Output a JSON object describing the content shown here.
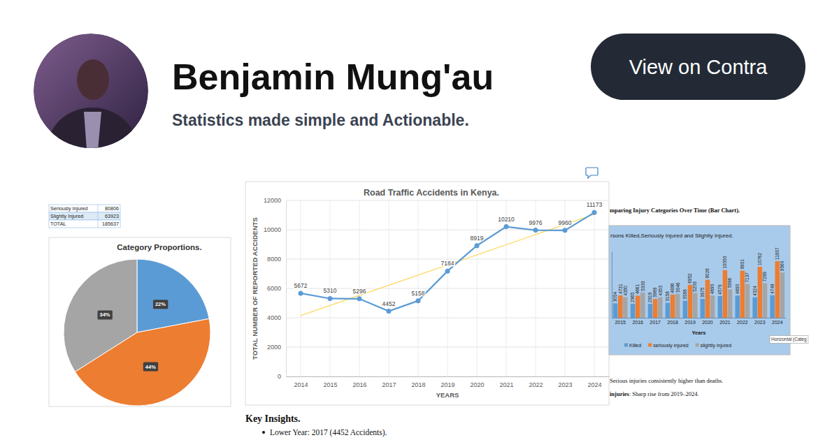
{
  "header": {
    "name": "Benjamin Mung'au",
    "tagline": "Statistics made simple and Actionable.",
    "button": "View on Contra"
  },
  "table": {
    "rows": [
      [
        "Seriously Injured",
        80806
      ],
      [
        "Slightly Injured",
        63923
      ],
      [
        "TOTAL",
        185637
      ]
    ]
  },
  "chart_data": [
    {
      "type": "pie",
      "title": "Category Proportions.",
      "categories": [
        null,
        null,
        null
      ],
      "values": [
        22,
        44,
        34
      ],
      "value_labels": [
        "22%",
        "44%",
        "34%"
      ],
      "colors": [
        "#5b9bd5",
        "#ed7d31",
        "#a5a5a5"
      ],
      "data_labels": true
    },
    {
      "type": "line",
      "title": "Road Traffic Accidents in Kenya.",
      "x_label": "YEARS",
      "y_label": "TOTAL NUMBER OF REPORTED ACCIDENTS",
      "series": [
        {
          "x": [
            2014,
            2015,
            2016,
            2017,
            2018,
            2019,
            2020,
            2021,
            2022,
            2023,
            2024
          ],
          "values": [
            5672,
            5310,
            5296,
            4452,
            5158,
            7184,
            8919,
            10210,
            9976,
            9960,
            11173
          ],
          "color": "#5b9bd5",
          "marker": "circle"
        }
      ],
      "trendline": {
        "x": [
          2014,
          2024
        ],
        "values": [
          4150,
          11050
        ],
        "color": "#ffd966"
      },
      "xlim": [
        2013.5,
        2024.5
      ],
      "xticks": [
        2014,
        2015,
        2016,
        2017,
        2018,
        2019,
        2020,
        2021,
        2022,
        2023,
        2024
      ],
      "ylim": [
        0,
        12000
      ],
      "yticks": [
        0,
        2000,
        4000,
        6000,
        8000,
        10000,
        12000
      ],
      "grid": true,
      "data_labels": true
    },
    {
      "type": "bar",
      "title": "rsons Killed,Seriously Injured and Slightly Injured.",
      "x_label": "Years",
      "categories": [
        "2015",
        "2016",
        "2017",
        "2018",
        "2019",
        "2020",
        "2021",
        "2022",
        "2023",
        "2024"
      ],
      "series": [
        {
          "name": "Killed",
          "color": "#5b9bd5",
          "values": [
            3054,
            2965,
            2919,
            3158,
            3586,
            3975,
            4579,
            4690,
            4324,
            4748
          ]
        },
        {
          "name": "seriously injured",
          "color": "#ed7d31",
          "values": [
            4731,
            4661,
            3969,
            4886,
            6952,
            8026,
            10050,
            9931,
            10762,
            11937
          ]
        },
        {
          "name": "slightly injured",
          "color": "#a5a5a5",
          "values": [
            4350,
            5333,
            4353,
            5046,
            5209,
            4690,
            5996,
            7137,
            7299,
            9560
          ]
        }
      ],
      "ylim": [
        0,
        14000
      ],
      "tick_labels": "x",
      "data_labels": true,
      "legend": "bottom",
      "annotations": [
        "Horizontal (Categ"
      ]
    }
  ],
  "insights": {
    "title": "Key Insights.",
    "items": [
      "Lower Year: 2017 (4452 Accidents)."
    ]
  },
  "notes": {
    "heading": "mparing Injury Categories Over Time (Bar Chart).",
    "lines": [
      {
        "text": "Serious injuries consistently higher than deaths."
      },
      {
        "bold": "injuries",
        "text": ": Sharp rise from 2019–2024."
      }
    ]
  }
}
